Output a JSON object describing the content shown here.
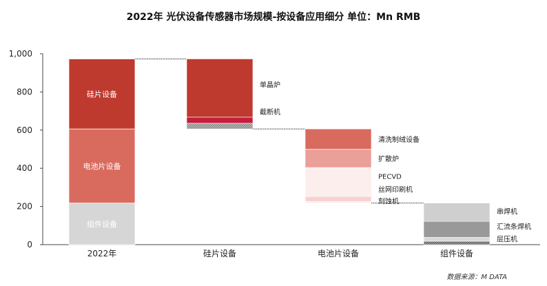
{
  "title": "2022年 光伏设备传感器市场规模-按设备应用细分 单位：Mn RMB",
  "source": "数据来源：M DATA",
  "chart_data": {
    "type": "bar",
    "subtype": "waterfall",
    "title": "2022年 光伏设备传感器市场规模-按设备应用细分 单位：Mn RMB",
    "ylim": [
      0,
      1000
    ],
    "yticks": [
      "0",
      "200",
      "400",
      "600",
      "800",
      "1,000"
    ],
    "grid": false,
    "categories": [
      "2022年",
      "硅片设备",
      "电池片设备",
      "组件设备"
    ],
    "total": {
      "category": "2022年",
      "segments": [
        {
          "name": "组件设备",
          "value": 218,
          "color": "#d6d6d6"
        },
        {
          "name": "电池片设备",
          "value": 388,
          "color": "#d96b5e"
        },
        {
          "name": "硅片设备",
          "value": 367,
          "color": "#be3a2e"
        }
      ]
    },
    "breakdown": [
      {
        "category": "硅片设备",
        "items": [
          {
            "name": "截断机",
            "start": 606,
            "end": 636,
            "color": "#a8a8a8",
            "pattern": "hatch"
          },
          {
            "name": "截断机",
            "start": 636,
            "end": 668,
            "color": "#c41e3a"
          },
          {
            "name": "单晶炉",
            "start": 668,
            "end": 973,
            "color": "#be3a2e"
          }
        ]
      },
      {
        "category": "电池片设备",
        "items": [
          {
            "name": "刻蚀机",
            "start": 218,
            "end": 226,
            "color": "#faeaea"
          },
          {
            "name": "丝网印刷机",
            "start": 226,
            "end": 252,
            "color": "#f7d2d0"
          },
          {
            "name": "PECVD",
            "start": 252,
            "end": 404,
            "color": "#fbeeed"
          },
          {
            "name": "扩散炉",
            "start": 404,
            "end": 500,
            "color": "#eb9f99"
          },
          {
            "name": "清洗制绒设备",
            "start": 500,
            "end": 606,
            "color": "#d96b5e"
          }
        ]
      },
      {
        "category": "组件设备",
        "items": [
          {
            "name": "层压机",
            "start": 0,
            "end": 18,
            "color": "#8c8c8c",
            "pattern": "hatch"
          },
          {
            "name": "层压机",
            "start": 18,
            "end": 38,
            "color": "#d9d9d9"
          },
          {
            "name": "汇流条焊机",
            "start": 38,
            "end": 122,
            "color": "#999999"
          },
          {
            "name": "串焊机",
            "start": 122,
            "end": 218,
            "color": "#cfcfcf"
          }
        ]
      }
    ]
  }
}
